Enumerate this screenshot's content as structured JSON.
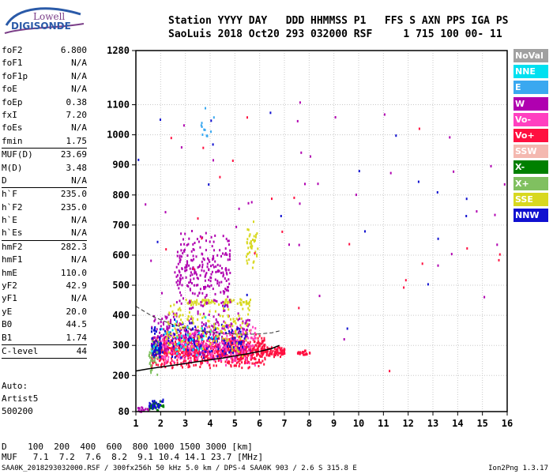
{
  "logo": {
    "line1": "Lowell",
    "line2": "DIGISONDE"
  },
  "header": {
    "line1": "Station YYYY DAY   DDD HHMMSS P1   FFS S AXN PPS IGA PS",
    "line2": "SaoLuis 2018 Oct20 293 032000 RSF     1 715 100 00- 11"
  },
  "params": [
    {
      "label": "foF2",
      "value": "6.800"
    },
    {
      "label": "foF1",
      "value": "N/A"
    },
    {
      "label": "foF1p",
      "value": "N/A"
    },
    {
      "label": "foE",
      "value": "N/A"
    },
    {
      "label": "foEp",
      "value": "0.38"
    },
    {
      "label": "fxI",
      "value": "7.20"
    },
    {
      "label": "foEs",
      "value": "N/A"
    },
    {
      "label": "fmin",
      "value": "1.75",
      "sep_after": true
    },
    {
      "label": "MUF(D)",
      "value": "23.69"
    },
    {
      "label": "M(D)",
      "value": "3.48"
    },
    {
      "label": "D",
      "value": "N/A",
      "sep_after": true
    },
    {
      "label": "h`F",
      "value": "235.0"
    },
    {
      "label": "h`F2",
      "value": "235.0"
    },
    {
      "label": "h`E",
      "value": "N/A"
    },
    {
      "label": "h`Es",
      "value": "N/A",
      "sep_after": true
    },
    {
      "label": "hmF2",
      "value": "282.3"
    },
    {
      "label": "hmF1",
      "value": "N/A"
    },
    {
      "label": "hmE",
      "value": "110.0"
    },
    {
      "label": "yF2",
      "value": "42.9"
    },
    {
      "label": "yF1",
      "value": "N/A"
    },
    {
      "label": "yE",
      "value": "20.0"
    },
    {
      "label": "B0",
      "value": "44.5"
    },
    {
      "label": "B1",
      "value": "1.74",
      "sep_after": true
    },
    {
      "label": "C-level",
      "value": "44",
      "sep_after": true
    }
  ],
  "auto": {
    "line1": "Auto:",
    "line2": "Artist5",
    "line3": "500200"
  },
  "legend": [
    {
      "label": "NoVal",
      "color": "#a0a0a0"
    },
    {
      "label": "NNE",
      "color": "#00e0f0"
    },
    {
      "label": "E",
      "color": "#3aa8f0"
    },
    {
      "label": "W",
      "color": "#b000b0"
    },
    {
      "label": "Vo-",
      "color": "#ff40c0"
    },
    {
      "label": "Vo+",
      "color": "#ff1040"
    },
    {
      "label": "SSW",
      "color": "#f4b8b0"
    },
    {
      "label": "X-",
      "color": "#008000"
    },
    {
      "label": "X+",
      "color": "#80c060"
    },
    {
      "label": "SSE",
      "color": "#d8d820"
    },
    {
      "label": "NNW",
      "color": "#1010d0"
    }
  ],
  "dmuf": {
    "line1": "D    100  200  400  600  800 1000 1500 3000 [km]",
    "line2": "MUF   7.1  7.2  7.6  8.2  9.1 10.4 14.1 23.7 [MHz]"
  },
  "footer": "SAA0K_2018293032000.RSF / 300fx256h 50 kHz 5.0 km / DPS-4 SAA0K 903 / 2.6 S 315.8 E",
  "version": "Ion2Png 1.3.17",
  "chart_data": {
    "type": "scatter",
    "xlim": [
      1,
      16
    ],
    "ylim": [
      80,
      1280
    ],
    "x_ticks": [
      1,
      2,
      3,
      4,
      5,
      6,
      7,
      8,
      9,
      10,
      11,
      12,
      13,
      14,
      15,
      16
    ],
    "y_ticks": [
      80,
      200,
      300,
      400,
      500,
      600,
      700,
      800,
      900,
      1000,
      1100,
      1280
    ],
    "grid": true,
    "trace_curve": {
      "x": [
        1.0,
        1.5,
        2.0,
        2.5,
        3.0,
        3.5,
        4.0,
        4.5,
        5.0,
        5.5,
        6.0,
        6.5,
        6.8
      ],
      "y": [
        215,
        222,
        228,
        234,
        240,
        246,
        252,
        258,
        265,
        272,
        280,
        290,
        300
      ]
    },
    "dashed_curve": {
      "x": [
        1.0,
        1.3,
        1.6,
        2.0,
        2.4,
        2.8,
        3.2,
        3.6,
        4.0,
        4.5,
        5.0,
        5.5,
        6.0,
        6.5,
        6.8
      ],
      "y": [
        430,
        415,
        400,
        385,
        372,
        362,
        354,
        348,
        344,
        340,
        338,
        337,
        338,
        342,
        348
      ]
    },
    "echo_regions": [
      {
        "color": "#ff1040",
        "x": [
          1.6,
          6.2
        ],
        "y": [
          225,
          345
        ],
        "n": 800
      },
      {
        "color": "#ff1040",
        "x": [
          6.0,
          7.0
        ],
        "y": [
          262,
          300
        ],
        "n": 80
      },
      {
        "color": "#b000b0",
        "x": [
          1.6,
          5.6
        ],
        "y": [
          250,
          420
        ],
        "n": 300
      },
      {
        "color": "#ff40c0",
        "x": [
          2.0,
          5.8
        ],
        "y": [
          230,
          380
        ],
        "n": 250
      },
      {
        "color": "#1010d0",
        "x": [
          1.6,
          5.4
        ],
        "y": [
          250,
          400
        ],
        "n": 150
      },
      {
        "color": "#d8d820",
        "x": [
          2.2,
          5.6
        ],
        "y": [
          260,
          460
        ],
        "n": 150
      },
      {
        "color": "#d8d820",
        "x": [
          3.0,
          5.6
        ],
        "y": [
          435,
          460
        ],
        "n": 70
      },
      {
        "color": "#b000b0",
        "x": [
          2.6,
          4.8
        ],
        "y": [
          400,
          690
        ],
        "n": 260
      },
      {
        "color": "#d8d820",
        "x": [
          5.4,
          5.9
        ],
        "y": [
          560,
          720
        ],
        "n": 40
      },
      {
        "color": "#1010d0",
        "x": [
          1.6,
          2.0
        ],
        "y": [
          255,
          320
        ],
        "n": 60
      },
      {
        "color": "#008000",
        "x": [
          1.5,
          2.1
        ],
        "y": [
          85,
          130
        ],
        "n": 30
      },
      {
        "color": "#1010d0",
        "x": [
          1.5,
          2.1
        ],
        "y": [
          85,
          130
        ],
        "n": 25
      },
      {
        "color": "#b000b0",
        "x": [
          1.0,
          1.5
        ],
        "y": [
          82,
          100
        ],
        "n": 15
      },
      {
        "color": "#80c060",
        "x": [
          1.5,
          1.9
        ],
        "y": [
          180,
          330
        ],
        "n": 30
      },
      {
        "color": "#ff1040",
        "x": [
          7.5,
          8.0
        ],
        "y": [
          270,
          290
        ],
        "n": 25
      },
      {
        "color": "#00e0f0",
        "x": [
          1.6,
          4.3
        ],
        "y": [
          250,
          400
        ],
        "n": 40
      },
      {
        "color": "#3aa8f0",
        "x": [
          3.6,
          4.2
        ],
        "y": [
          950,
          1100
        ],
        "n": 12
      },
      {
        "color": "#b000b0",
        "x": [
          1.0,
          16.0
        ],
        "y": [
          200,
          1280
        ],
        "n": 40
      },
      {
        "color": "#ff1040",
        "x": [
          1.0,
          16.0
        ],
        "y": [
          200,
          1280
        ],
        "n": 25
      },
      {
        "color": "#1010d0",
        "x": [
          1.0,
          16.0
        ],
        "y": [
          150,
          1280
        ],
        "n": 20
      }
    ]
  }
}
